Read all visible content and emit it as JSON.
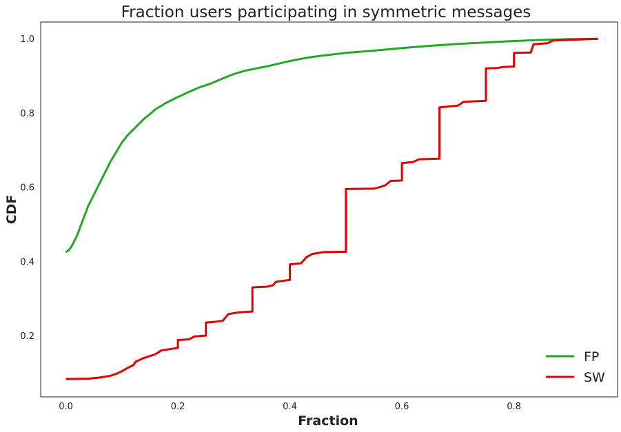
{
  "chart_data": {
    "type": "line",
    "title": "Fraction users participating in symmetric messages",
    "xlabel": "Fraction",
    "ylabel": "CDF",
    "xlim": [
      -0.045,
      0.985
    ],
    "ylim": [
      0.035,
      1.045
    ],
    "xticks": [
      0.0,
      0.2,
      0.4,
      0.6,
      0.8
    ],
    "xtick_labels": [
      "0.0",
      "0.2",
      "0.4",
      "0.6",
      "0.8"
    ],
    "yticks": [
      0.2,
      0.4,
      0.6,
      0.8,
      1.0
    ],
    "ytick_labels": [
      "0.2",
      "0.4",
      "0.6",
      "0.8",
      "1.0"
    ],
    "grid": false,
    "legend_position": "bottom-right",
    "series": [
      {
        "name": "FP",
        "color": "#22a922",
        "points": [
          [
            0.0,
            0.425
          ],
          [
            0.005,
            0.43
          ],
          [
            0.01,
            0.44
          ],
          [
            0.02,
            0.47
          ],
          [
            0.03,
            0.51
          ],
          [
            0.04,
            0.55
          ],
          [
            0.05,
            0.58
          ],
          [
            0.06,
            0.61
          ],
          [
            0.07,
            0.64
          ],
          [
            0.08,
            0.67
          ],
          [
            0.09,
            0.695
          ],
          [
            0.1,
            0.72
          ],
          [
            0.11,
            0.74
          ],
          [
            0.12,
            0.755
          ],
          [
            0.13,
            0.77
          ],
          [
            0.14,
            0.785
          ],
          [
            0.15,
            0.797
          ],
          [
            0.16,
            0.81
          ],
          [
            0.18,
            0.828
          ],
          [
            0.2,
            0.843
          ],
          [
            0.22,
            0.857
          ],
          [
            0.24,
            0.87
          ],
          [
            0.26,
            0.88
          ],
          [
            0.28,
            0.893
          ],
          [
            0.3,
            0.905
          ],
          [
            0.32,
            0.914
          ],
          [
            0.34,
            0.92
          ],
          [
            0.36,
            0.926
          ],
          [
            0.38,
            0.933
          ],
          [
            0.4,
            0.94
          ],
          [
            0.42,
            0.946
          ],
          [
            0.44,
            0.951
          ],
          [
            0.46,
            0.955
          ],
          [
            0.5,
            0.962
          ],
          [
            0.55,
            0.968
          ],
          [
            0.6,
            0.975
          ],
          [
            0.65,
            0.981
          ],
          [
            0.7,
            0.986
          ],
          [
            0.75,
            0.99
          ],
          [
            0.8,
            0.994
          ],
          [
            0.85,
            0.997
          ],
          [
            0.9,
            0.999
          ],
          [
            0.95,
            1.0
          ]
        ]
      },
      {
        "name": "SW",
        "color": "#e00000",
        "points": [
          [
            0.0,
            0.083
          ],
          [
            0.04,
            0.084
          ],
          [
            0.06,
            0.087
          ],
          [
            0.08,
            0.092
          ],
          [
            0.09,
            0.097
          ],
          [
            0.1,
            0.104
          ],
          [
            0.11,
            0.113
          ],
          [
            0.12,
            0.12
          ],
          [
            0.125,
            0.13
          ],
          [
            0.14,
            0.14
          ],
          [
            0.16,
            0.15
          ],
          [
            0.17,
            0.16
          ],
          [
            0.2,
            0.167
          ],
          [
            0.2,
            0.188
          ],
          [
            0.22,
            0.19
          ],
          [
            0.23,
            0.198
          ],
          [
            0.25,
            0.2
          ],
          [
            0.25,
            0.235
          ],
          [
            0.27,
            0.238
          ],
          [
            0.28,
            0.24
          ],
          [
            0.29,
            0.258
          ],
          [
            0.31,
            0.263
          ],
          [
            0.333,
            0.265
          ],
          [
            0.333,
            0.33
          ],
          [
            0.36,
            0.332
          ],
          [
            0.37,
            0.336
          ],
          [
            0.375,
            0.345
          ],
          [
            0.39,
            0.348
          ],
          [
            0.4,
            0.35
          ],
          [
            0.4,
            0.392
          ],
          [
            0.42,
            0.395
          ],
          [
            0.43,
            0.412
          ],
          [
            0.44,
            0.42
          ],
          [
            0.46,
            0.425
          ],
          [
            0.5,
            0.426
          ],
          [
            0.5,
            0.595
          ],
          [
            0.55,
            0.596
          ],
          [
            0.56,
            0.6
          ],
          [
            0.57,
            0.605
          ],
          [
            0.58,
            0.617
          ],
          [
            0.6,
            0.618
          ],
          [
            0.6,
            0.665
          ],
          [
            0.62,
            0.668
          ],
          [
            0.63,
            0.675
          ],
          [
            0.667,
            0.677
          ],
          [
            0.667,
            0.815
          ],
          [
            0.7,
            0.82
          ],
          [
            0.71,
            0.83
          ],
          [
            0.75,
            0.833
          ],
          [
            0.75,
            0.92
          ],
          [
            0.77,
            0.921
          ],
          [
            0.78,
            0.924
          ],
          [
            0.8,
            0.925
          ],
          [
            0.8,
            0.962
          ],
          [
            0.83,
            0.963
          ],
          [
            0.835,
            0.985
          ],
          [
            0.86,
            0.988
          ],
          [
            0.87,
            0.995
          ],
          [
            0.9,
            0.997
          ],
          [
            0.95,
            1.0
          ]
        ]
      }
    ]
  }
}
